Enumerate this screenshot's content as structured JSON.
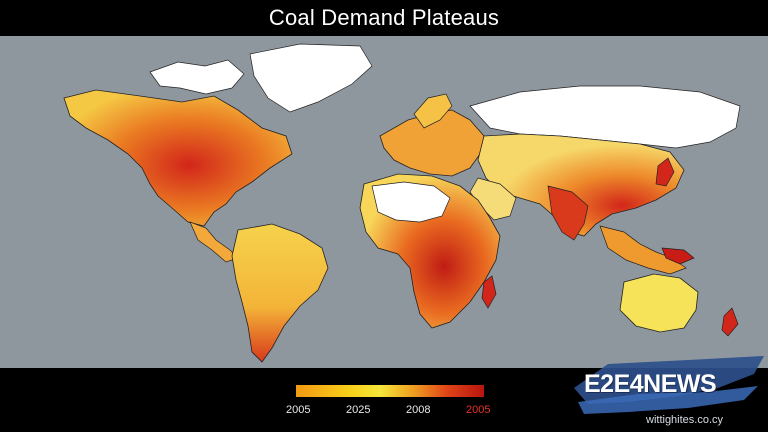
{
  "title": "Coal Demand Plateaus",
  "legend": {
    "labels": [
      "2005",
      "2025",
      "2008",
      "2005"
    ],
    "colors": [
      "#f39a12",
      "#f5e53a",
      "#e04618",
      "#b8140f"
    ]
  },
  "brand": {
    "name": "E2E4NEWS",
    "url": "wittighites.co.cy",
    "logo_color": "#2e4f8c"
  },
  "map": {
    "ocean_color": "#8f979e",
    "land_low_color": "#ffffff",
    "land_mid_color": "#f6cf4a",
    "land_high_color": "#d2261a"
  }
}
